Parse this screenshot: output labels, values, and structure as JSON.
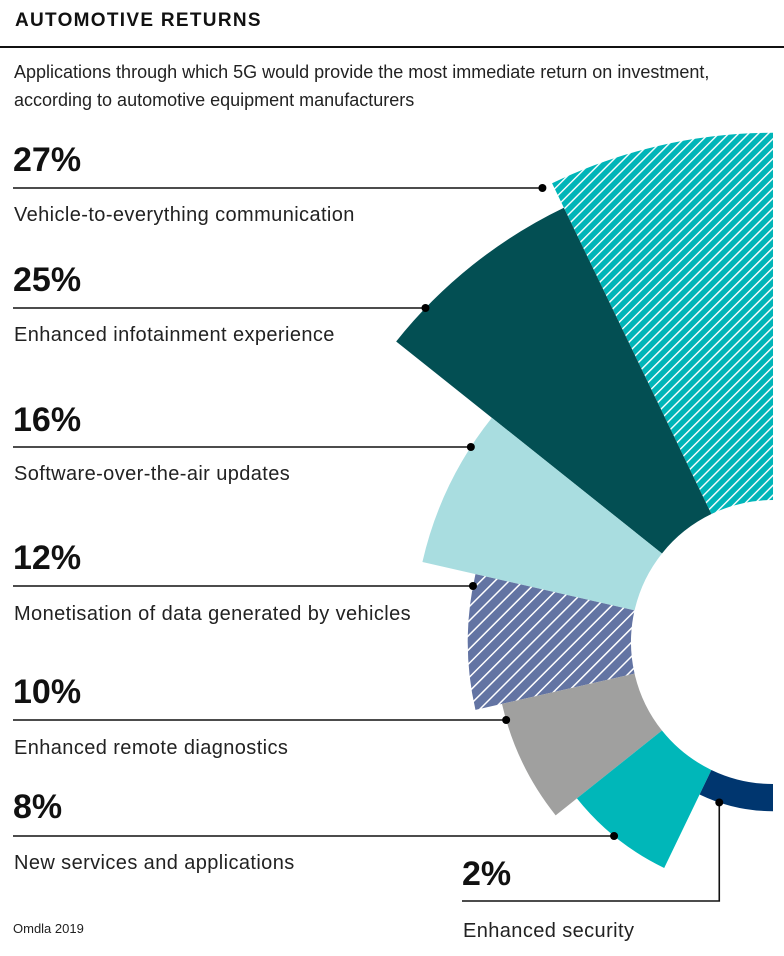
{
  "header": {
    "title": "AUTOMOTIVE RETURNS",
    "subtitle": "Applications through which 5G would provide the most immediate return on investment, according to automotive equipment manufacturers"
  },
  "source": "Omdla 2019",
  "chart_data": {
    "type": "pie",
    "variant": "polar-area half-donut (equal angles, radius proportional to value)",
    "title": "AUTOMOTIVE RETURNS",
    "subtitle": "Applications through which 5G would provide the most immediate return on investment, according to automotive equipment manufacturers",
    "unit": "%",
    "categories": [
      "Vehicle-to-everything communication",
      "Enhanced infotainment experience",
      "Software-over-the-air updates",
      "Monetisation of data generated by vehicles",
      "Enhanced remote diagnostics",
      "New services and applications",
      "Enhanced security"
    ],
    "values": [
      27,
      25,
      16,
      12,
      10,
      8,
      2
    ],
    "value_labels": [
      "27%",
      "25%",
      "16%",
      "12%",
      "10%",
      "8%",
      "2%"
    ],
    "colors": [
      "#00B5B8",
      "#034F53",
      "#A9DDE0",
      "#6374A3",
      "#A0A09F",
      "#00B7B9",
      "#00366F"
    ],
    "hatched": [
      true,
      false,
      false,
      true,
      false,
      false,
      false
    ],
    "legend": "leader-lines-left",
    "source": "Omdla 2019"
  }
}
